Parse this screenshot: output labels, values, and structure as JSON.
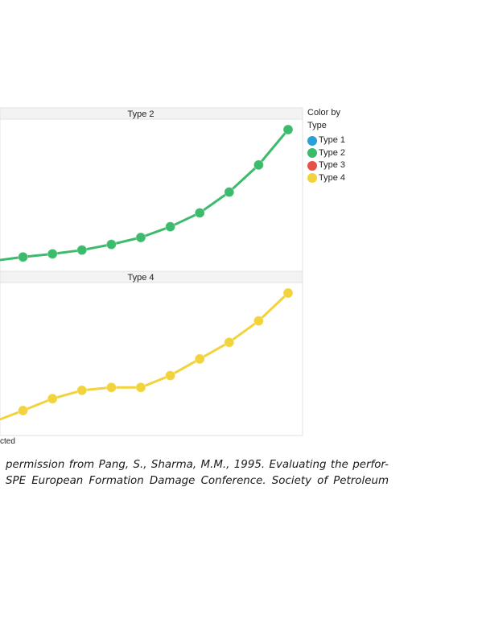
{
  "chart_data": [
    {
      "type": "line",
      "panel": "Type 2",
      "color": "#3dbb6c",
      "x": [
        0,
        1,
        2,
        3,
        4,
        5,
        6,
        7,
        8,
        9,
        10
      ],
      "values": [
        0.0,
        0.6,
        1.1,
        1.7,
        2.6,
        3.7,
        5.4,
        7.6,
        10.9,
        15.2,
        20.8
      ]
    },
    {
      "type": "line",
      "panel": "Type 4",
      "color": "#f2d33b",
      "x": [
        0,
        1,
        2,
        3,
        4,
        5,
        6,
        7,
        8,
        9,
        10
      ],
      "values": [
        0.0,
        1.9,
        3.9,
        5.3,
        5.8,
        5.8,
        7.8,
        10.6,
        13.4,
        17.0,
        21.7
      ]
    }
  ],
  "panels": [
    {
      "header": "Type 2"
    },
    {
      "header": "Type 4"
    }
  ],
  "legend": {
    "title": "Color by\nType",
    "items": [
      {
        "label": "Type 1",
        "color": "#2b9fd9"
      },
      {
        "label": "Type 2",
        "color": "#3dbb6c"
      },
      {
        "label": "Type 3",
        "color": "#e8514a"
      },
      {
        "label": "Type 4",
        "color": "#f2d33b"
      }
    ]
  },
  "axis_fragment": "cted",
  "caption": {
    "line1": "permission from Pang, S., Sharma, M.M., 1995. Evaluating the perfor-",
    "line2": "SPE European Formation Damage Conference. Society of Petroleum"
  }
}
